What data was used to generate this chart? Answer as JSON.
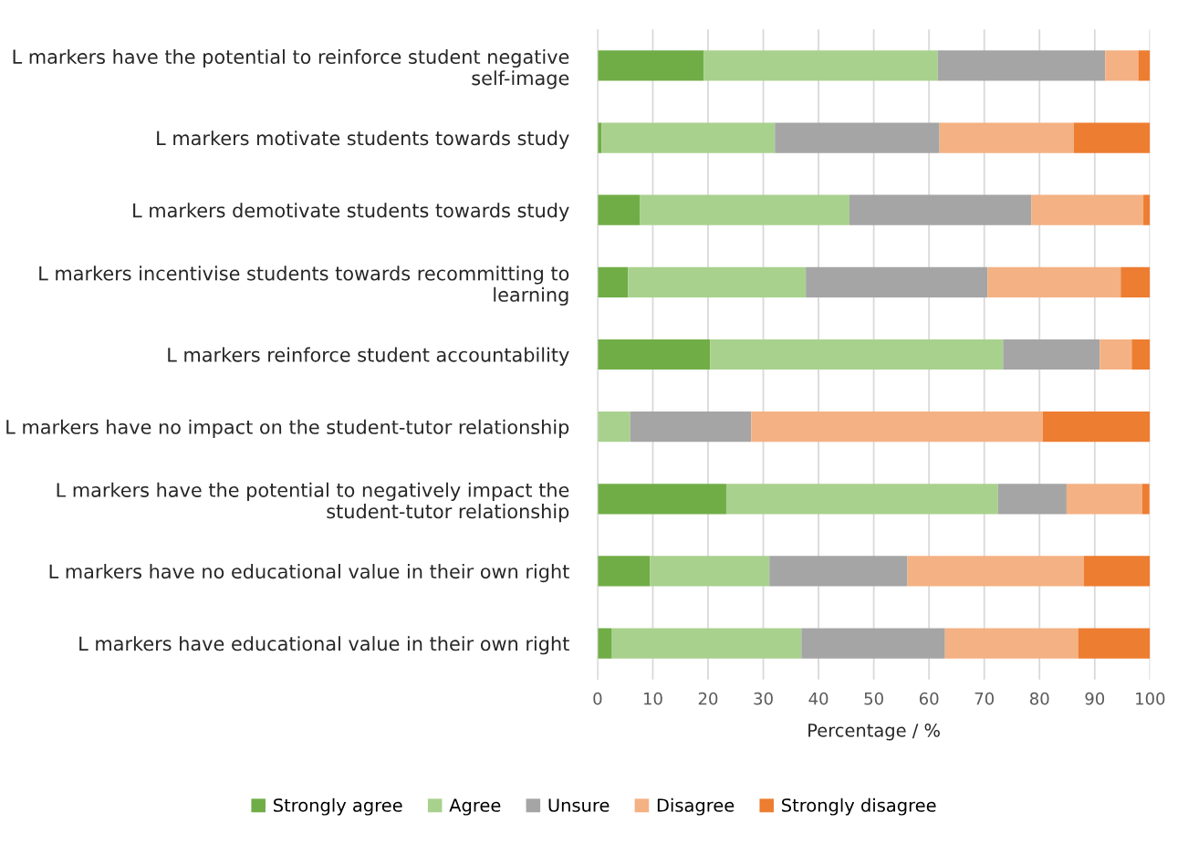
{
  "chart_data": {
    "type": "bar",
    "orientation": "horizontal",
    "stacked": true,
    "categories": [
      "L markers have the potential to reinforce student negative self-image",
      "L markers motivate students towards study",
      "L markers demotivate students towards study",
      "L markers incentivise students towards recommitting to learning",
      "L markers reinforce student accountability",
      "L markers have no impact on the student-tutor relationship",
      "L markers have the potential to negatively impact the student-tutor relationship",
      "L markers have no educational value in their own right",
      "L markers have educational value in their own right"
    ],
    "series": [
      {
        "name": "Strongly agree",
        "color": "#70ad47",
        "values": [
          19.2,
          0.7,
          7.7,
          5.5,
          20.4,
          0,
          23.3,
          9.5,
          2.6
        ]
      },
      {
        "name": "Agree",
        "color": "#a9d18e",
        "values": [
          42.4,
          31.4,
          37.9,
          32.2,
          53.0,
          5.9,
          49.2,
          21.6,
          34.3
        ]
      },
      {
        "name": "Unsure",
        "color": "#a5a5a5",
        "values": [
          30.3,
          29.8,
          32.9,
          32.9,
          17.5,
          21.9,
          12.4,
          25.0,
          26.0
        ]
      },
      {
        "name": "Disagree",
        "color": "#f4b183",
        "values": [
          6.0,
          24.3,
          20.3,
          24.1,
          5.8,
          52.8,
          13.7,
          31.9,
          24.1
        ]
      },
      {
        "name": "Strongly disagree",
        "color": "#ed7d31",
        "values": [
          2.1,
          13.8,
          1.2,
          5.3,
          3.3,
          19.4,
          1.3,
          12.0,
          13.0
        ]
      }
    ],
    "xlabel": "Percentage / %",
    "xlim": [
      0,
      100
    ],
    "xticks": [
      0,
      10,
      20,
      30,
      40,
      50,
      60,
      70,
      80,
      90,
      100
    ],
    "grid": "x",
    "legend": "bottom"
  }
}
